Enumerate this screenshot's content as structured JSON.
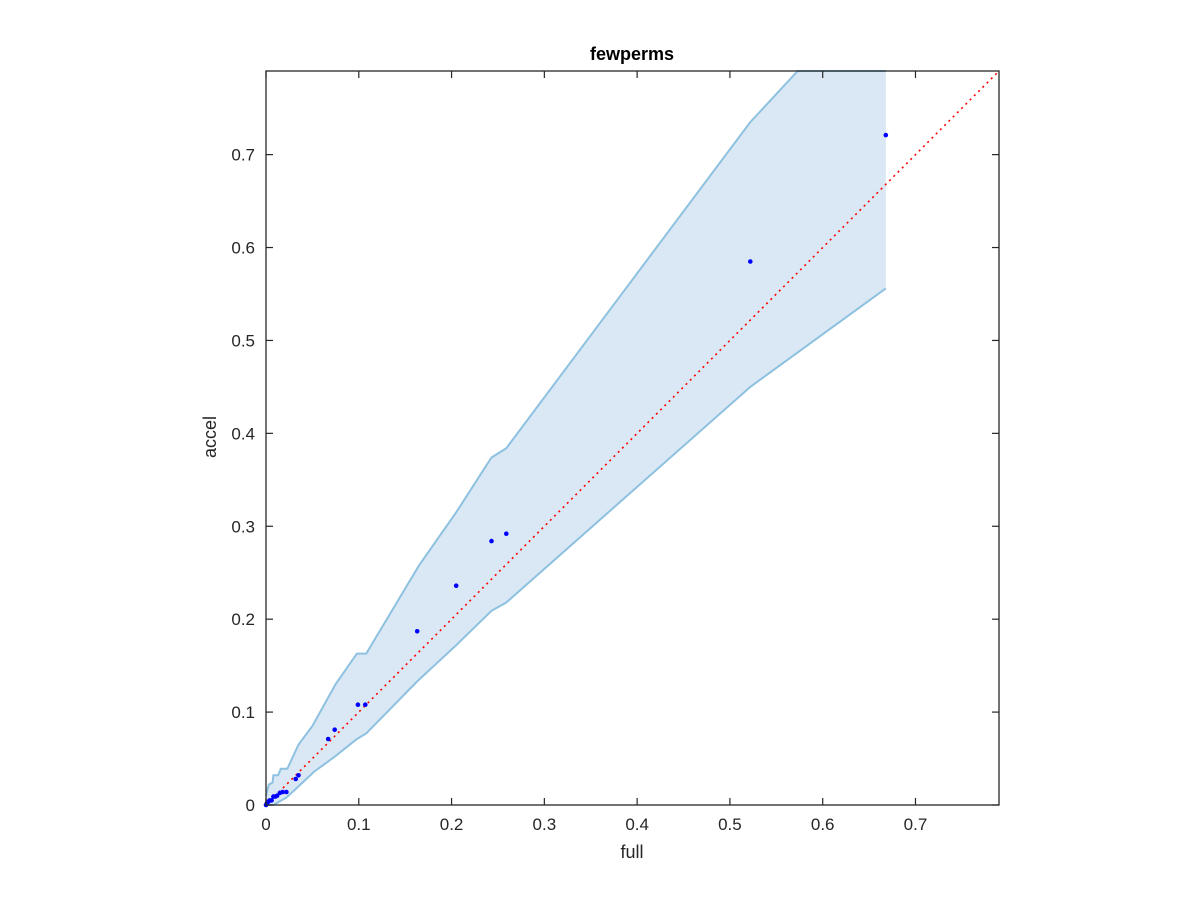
{
  "chart_data": {
    "type": "scatter",
    "title": "fewperms",
    "xlabel": "full",
    "ylabel": "accel",
    "xlim": [
      0,
      0.79
    ],
    "ylim": [
      0,
      0.79
    ],
    "xticks": [
      "0",
      "0.1",
      "0.2",
      "0.3",
      "0.4",
      "0.5",
      "0.6",
      "0.7"
    ],
    "yticks": [
      "0",
      "0.1",
      "0.2",
      "0.3",
      "0.4",
      "0.5",
      "0.6",
      "0.7"
    ],
    "grid": false,
    "legend": "none",
    "colors": {
      "points": "#0000ff",
      "reference_line": "#ff0000",
      "band_fill": "#d9e8f4",
      "band_edge": "#8ec1e0",
      "axes": "#262626"
    },
    "reference_line": {
      "style": "dotted",
      "x": [
        0,
        0.79
      ],
      "y": [
        0,
        0.79
      ]
    },
    "points": [
      {
        "x": 0.0,
        "y": 0.0
      },
      {
        "x": 0.001,
        "y": 0.002
      },
      {
        "x": 0.002,
        "y": 0.003
      },
      {
        "x": 0.003,
        "y": 0.004
      },
      {
        "x": 0.004,
        "y": 0.005
      },
      {
        "x": 0.006,
        "y": 0.005
      },
      {
        "x": 0.008,
        "y": 0.009
      },
      {
        "x": 0.01,
        "y": 0.009
      },
      {
        "x": 0.012,
        "y": 0.01
      },
      {
        "x": 0.015,
        "y": 0.013
      },
      {
        "x": 0.018,
        "y": 0.014
      },
      {
        "x": 0.022,
        "y": 0.014
      },
      {
        "x": 0.032,
        "y": 0.028
      },
      {
        "x": 0.035,
        "y": 0.032
      },
      {
        "x": 0.067,
        "y": 0.071
      },
      {
        "x": 0.074,
        "y": 0.081
      },
      {
        "x": 0.099,
        "y": 0.108
      },
      {
        "x": 0.107,
        "y": 0.108
      },
      {
        "x": 0.163,
        "y": 0.187
      },
      {
        "x": 0.205,
        "y": 0.236
      },
      {
        "x": 0.243,
        "y": 0.284
      },
      {
        "x": 0.259,
        "y": 0.292
      },
      {
        "x": 0.522,
        "y": 0.585
      },
      {
        "x": 0.668,
        "y": 0.721
      }
    ],
    "band": {
      "upper": [
        [
          0.0,
          0.01
        ],
        [
          0.003,
          0.022
        ],
        [
          0.007,
          0.024
        ],
        [
          0.008,
          0.032
        ],
        [
          0.013,
          0.032
        ],
        [
          0.016,
          0.039
        ],
        [
          0.023,
          0.039
        ],
        [
          0.035,
          0.065
        ],
        [
          0.05,
          0.085
        ],
        [
          0.075,
          0.13
        ],
        [
          0.098,
          0.163
        ],
        [
          0.108,
          0.163
        ],
        [
          0.165,
          0.258
        ],
        [
          0.205,
          0.315
        ],
        [
          0.243,
          0.374
        ],
        [
          0.259,
          0.384
        ],
        [
          0.522,
          0.735
        ],
        [
          0.573,
          0.79
        ],
        [
          0.668,
          0.79
        ]
      ],
      "lower": [
        [
          0.668,
          0.556
        ],
        [
          0.522,
          0.45
        ],
        [
          0.259,
          0.218
        ],
        [
          0.243,
          0.209
        ],
        [
          0.205,
          0.172
        ],
        [
          0.163,
          0.133
        ],
        [
          0.108,
          0.077
        ],
        [
          0.098,
          0.071
        ],
        [
          0.074,
          0.052
        ],
        [
          0.052,
          0.036
        ],
        [
          0.035,
          0.02
        ],
        [
          0.022,
          0.008
        ],
        [
          0.015,
          0.004
        ],
        [
          0.008,
          0.0
        ],
        [
          0.0,
          0.0
        ]
      ]
    }
  }
}
